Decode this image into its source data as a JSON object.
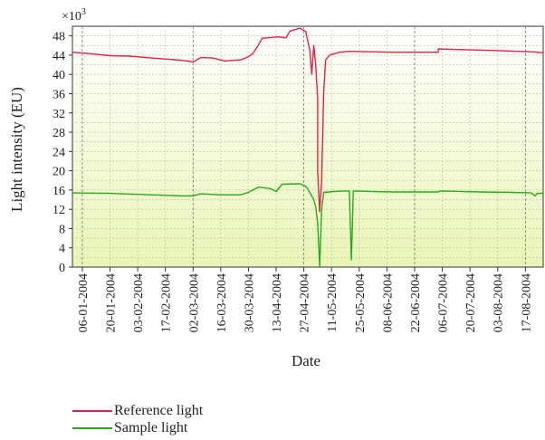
{
  "chart_data": {
    "type": "line",
    "multiplier_label": "×10",
    "multiplier_exponent": "3",
    "ylabel": "Light intensity (EU)",
    "xlabel": "Date",
    "ylim": [
      0,
      50
    ],
    "yticks": [
      0,
      4,
      8,
      12,
      16,
      20,
      24,
      28,
      32,
      36,
      40,
      44,
      48
    ],
    "x_start": "2004-01-01",
    "x_end": "2004-08-26",
    "xtick_labels": [
      "06-01-2004",
      "20-01-2004",
      "03-02-2004",
      "17-02-2004",
      "02-03-2004",
      "16-03-2004",
      "30-03-2004",
      "13-04-2004",
      "27-04-2004",
      "11-05-2004",
      "25-05-2004",
      "08-06-2004",
      "22-06-2004",
      "06-07-2004",
      "20-07-2004",
      "03-08-2004",
      "17-08-2004"
    ],
    "xtick_dates": [
      "2004-01-06",
      "2004-01-20",
      "2004-02-03",
      "2004-02-17",
      "2004-03-02",
      "2004-03-16",
      "2004-03-30",
      "2004-04-13",
      "2004-04-27",
      "2004-05-11",
      "2004-05-25",
      "2004-06-08",
      "2004-06-22",
      "2004-07-06",
      "2004-07-20",
      "2004-08-03",
      "2004-08-17"
    ],
    "grid": true,
    "legend_position": "bottom-left",
    "series": [
      {
        "name": "Reference light",
        "color": "#e8204a",
        "points": [
          [
            "2004-01-01",
            44.6
          ],
          [
            "2004-01-10",
            44.3
          ],
          [
            "2004-01-20",
            43.9
          ],
          [
            "2004-01-30",
            43.8
          ],
          [
            "2004-02-10",
            43.4
          ],
          [
            "2004-02-20",
            43.1
          ],
          [
            "2004-02-28",
            42.8
          ],
          [
            "2004-03-02",
            42.6
          ],
          [
            "2004-03-06",
            43.5
          ],
          [
            "2004-03-12",
            43.4
          ],
          [
            "2004-03-18",
            42.8
          ],
          [
            "2004-03-26",
            43.0
          ],
          [
            "2004-03-29",
            43.5
          ],
          [
            "2004-04-01",
            44.2
          ],
          [
            "2004-04-04",
            46.1
          ],
          [
            "2004-04-06",
            47.5
          ],
          [
            "2004-04-14",
            47.8
          ],
          [
            "2004-04-18",
            47.6
          ],
          [
            "2004-04-20",
            49.0
          ],
          [
            "2004-04-25",
            49.6
          ],
          [
            "2004-04-28",
            48.9
          ],
          [
            "2004-04-30",
            45.0
          ],
          [
            "2004-05-01",
            40.0
          ],
          [
            "2004-05-02",
            46.0
          ],
          [
            "2004-05-03",
            42.0
          ],
          [
            "2004-05-04",
            35.0
          ],
          [
            "2004-05-04",
            20.0
          ],
          [
            "2004-05-05",
            11.5
          ],
          [
            "2004-05-06",
            18.0
          ],
          [
            "2004-05-07",
            36.0
          ],
          [
            "2004-05-08",
            43.0
          ],
          [
            "2004-05-10",
            44.0
          ],
          [
            "2004-05-15",
            44.6
          ],
          [
            "2004-05-20",
            44.8
          ],
          [
            "2004-06-10",
            44.6
          ],
          [
            "2004-06-30",
            44.6
          ],
          [
            "2004-07-04",
            44.6
          ],
          [
            "2004-07-04",
            45.3
          ],
          [
            "2004-07-20",
            45.1
          ],
          [
            "2004-08-05",
            44.9
          ],
          [
            "2004-08-20",
            44.7
          ],
          [
            "2004-08-26",
            44.5
          ]
        ]
      },
      {
        "name": "Sample light",
        "color": "#2aaa1a",
        "points": [
          [
            "2004-01-01",
            15.4
          ],
          [
            "2004-01-20",
            15.3
          ],
          [
            "2004-02-10",
            15.0
          ],
          [
            "2004-02-25",
            14.8
          ],
          [
            "2004-03-02",
            14.8
          ],
          [
            "2004-03-06",
            15.2
          ],
          [
            "2004-03-15",
            15.0
          ],
          [
            "2004-03-26",
            15.0
          ],
          [
            "2004-03-30",
            15.5
          ],
          [
            "2004-04-04",
            16.6
          ],
          [
            "2004-04-10",
            16.3
          ],
          [
            "2004-04-13",
            15.7
          ],
          [
            "2004-04-16",
            17.2
          ],
          [
            "2004-04-25",
            17.3
          ],
          [
            "2004-04-28",
            16.8
          ],
          [
            "2004-04-30",
            15.5
          ],
          [
            "2004-05-02",
            14.0
          ],
          [
            "2004-05-03",
            12.5
          ],
          [
            "2004-05-04",
            9.0
          ],
          [
            "2004-05-05",
            0.2
          ],
          [
            "2004-05-06",
            12.0
          ],
          [
            "2004-05-07",
            15.5
          ],
          [
            "2004-05-12",
            15.7
          ],
          [
            "2004-05-19",
            15.8
          ],
          [
            "2004-05-20",
            15.8
          ],
          [
            "2004-05-21",
            1.5
          ],
          [
            "2004-05-22",
            15.8
          ],
          [
            "2004-06-10",
            15.6
          ],
          [
            "2004-07-04",
            15.6
          ],
          [
            "2004-07-05",
            15.8
          ],
          [
            "2004-07-25",
            15.6
          ],
          [
            "2004-08-10",
            15.5
          ],
          [
            "2004-08-20",
            15.4
          ],
          [
            "2004-08-22",
            14.8
          ],
          [
            "2004-08-23",
            15.3
          ],
          [
            "2004-08-26",
            15.3
          ]
        ]
      }
    ]
  }
}
